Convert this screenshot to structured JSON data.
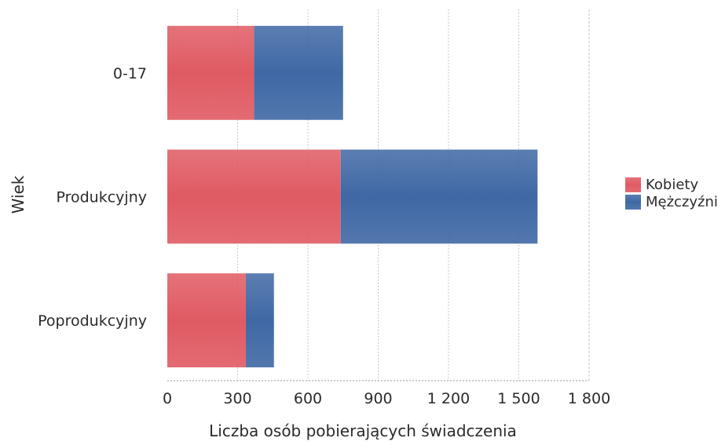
{
  "chart_data": {
    "type": "bar",
    "orientation": "horizontal",
    "stacked": true,
    "title": "",
    "xlabel": "Liczba osób pobierających świadczenia",
    "ylabel": "Wiek",
    "categories": [
      "0-17",
      "Produkcyjny",
      "Poprodukcyjny"
    ],
    "series": [
      {
        "name": "Kobiety",
        "color": "#e05a63",
        "values": [
          370,
          740,
          335
        ]
      },
      {
        "name": "Mężczyźni",
        "color": "#3f68a4",
        "values": [
          380,
          840,
          120
        ]
      }
    ],
    "xlim": [
      0,
      1800
    ],
    "x_ticks": [
      0,
      300,
      600,
      900,
      1200,
      1500,
      1800
    ],
    "x_tick_labels": [
      "0",
      "300",
      "600",
      "900",
      "1 200",
      "1 500",
      "1 800"
    ],
    "grid": "vertical",
    "legend_position": "right"
  }
}
